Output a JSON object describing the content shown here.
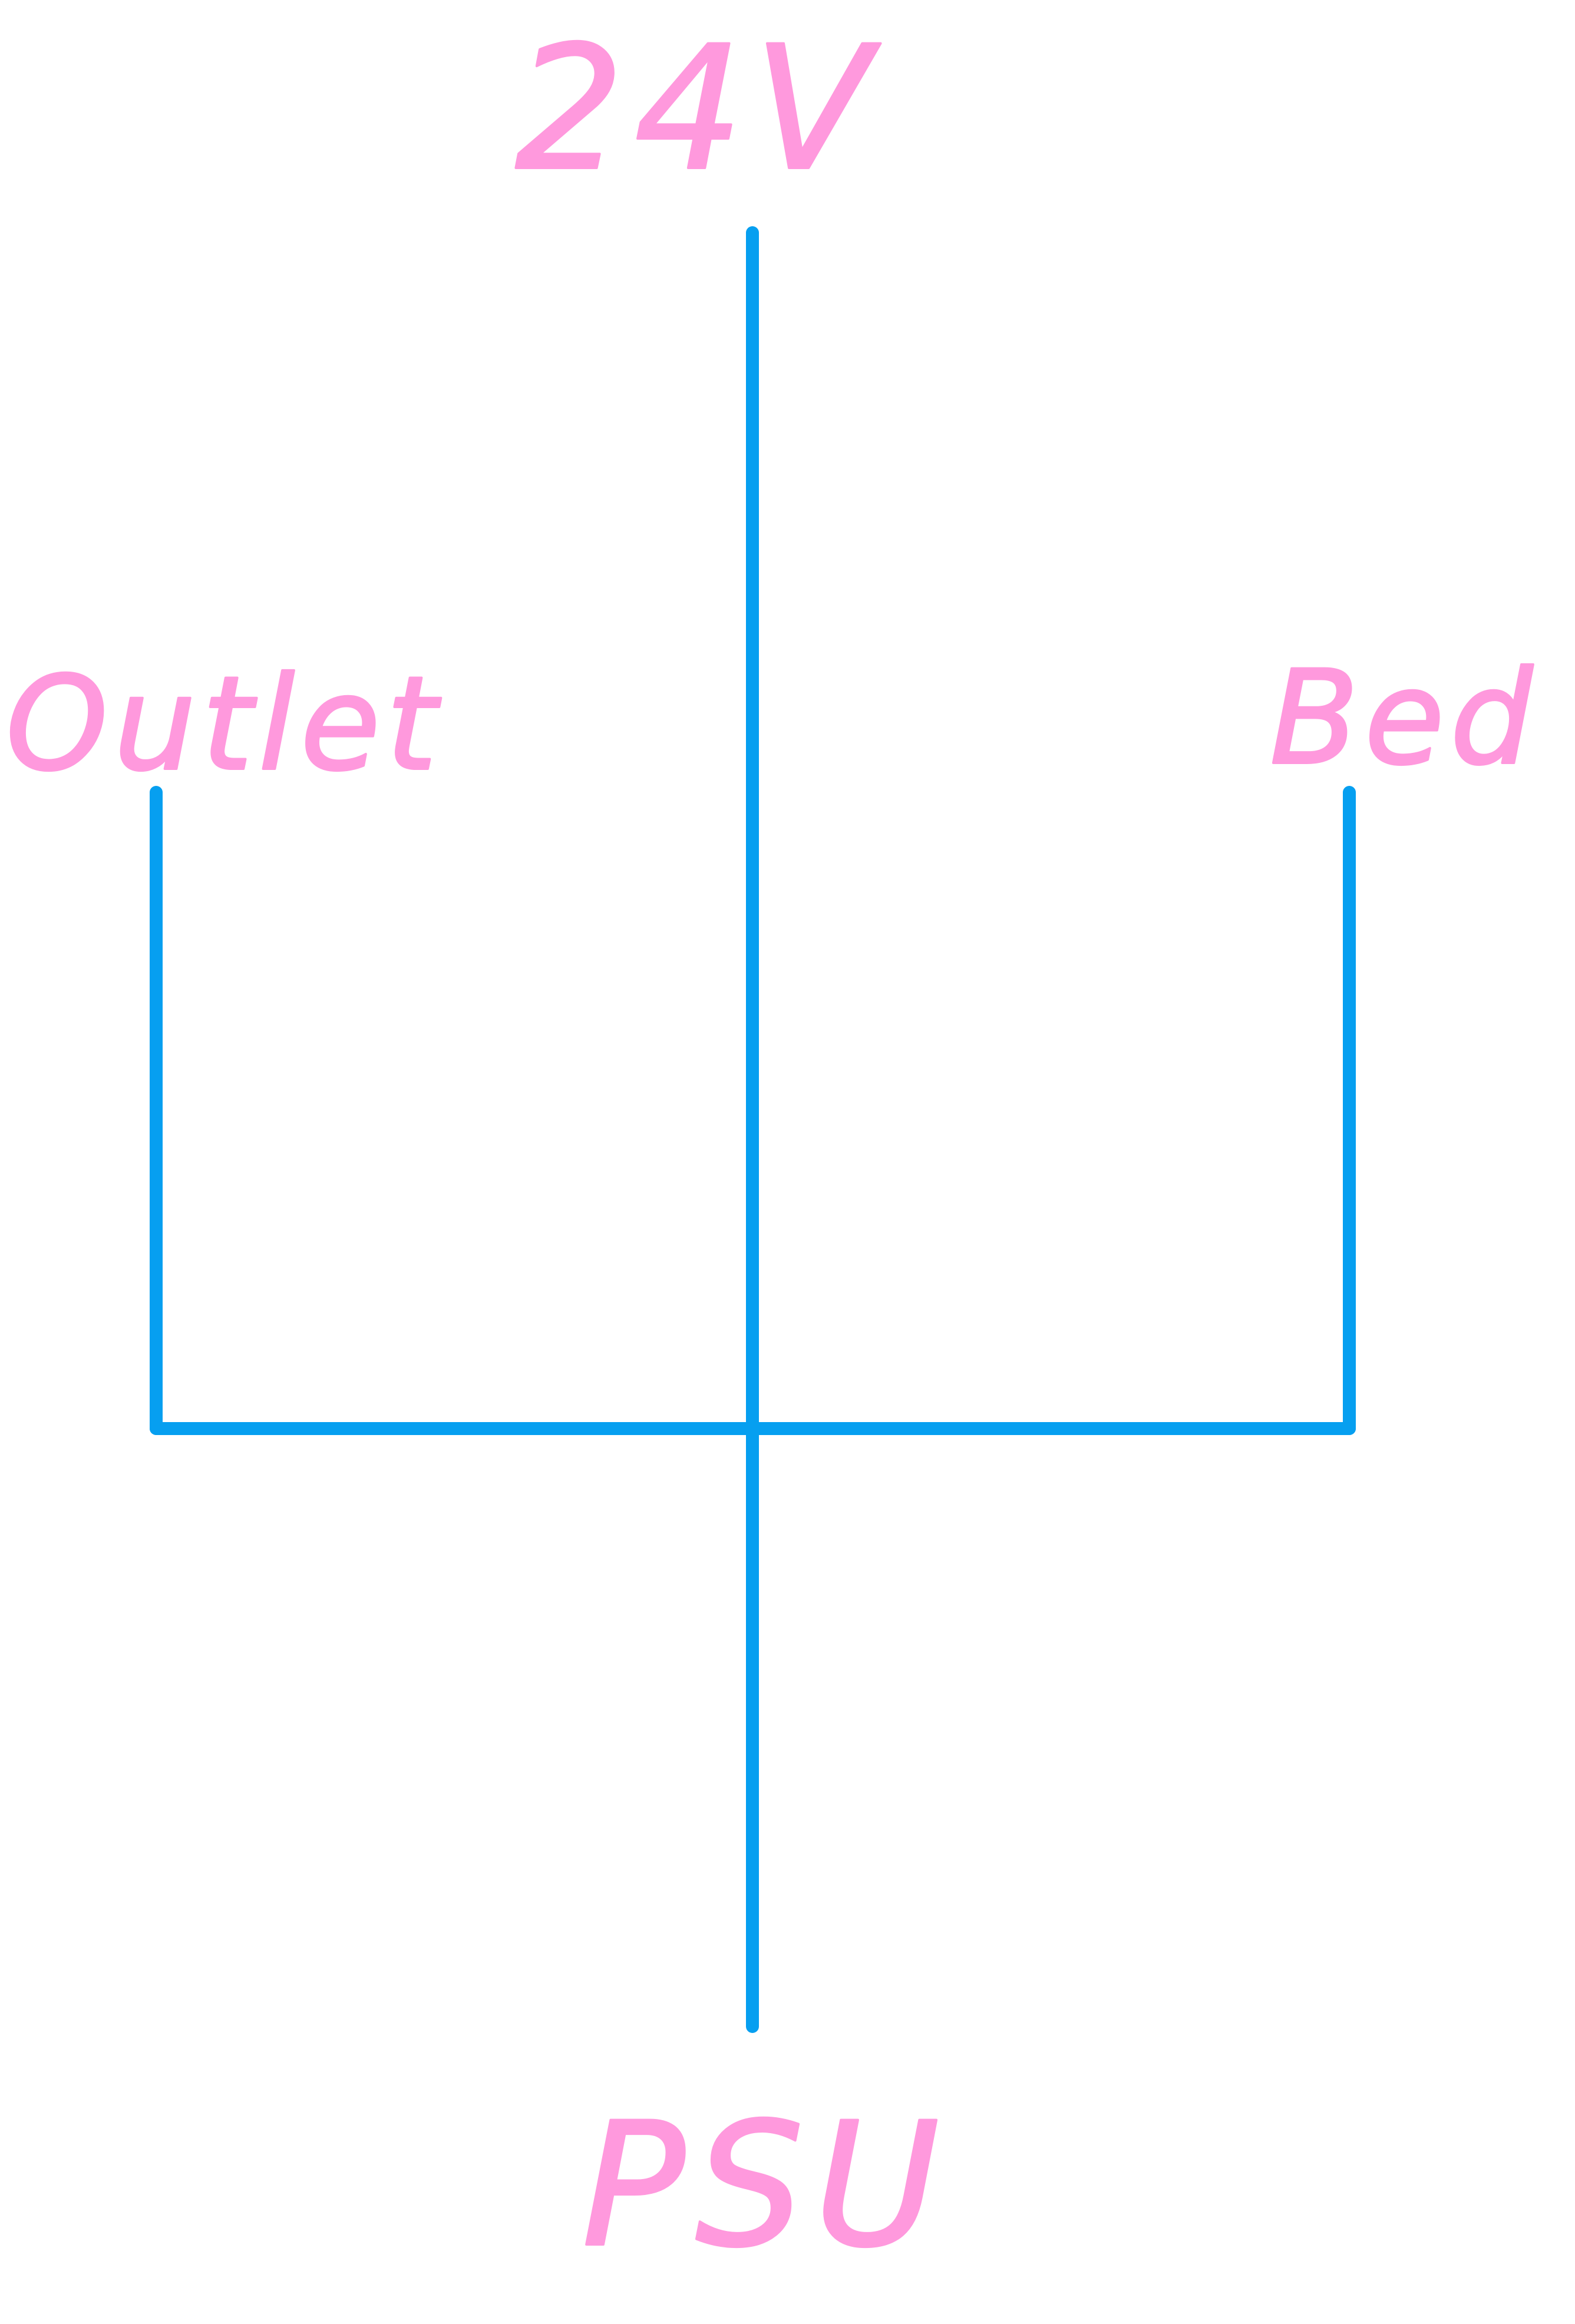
{
  "diagram": {
    "top_label": "24V",
    "left_label": "Outlet",
    "right_label": "Bed",
    "bottom_label": "PSU",
    "wire_color": "#069ff0",
    "text_color": "#ff99dd",
    "background": "#ffffff"
  }
}
